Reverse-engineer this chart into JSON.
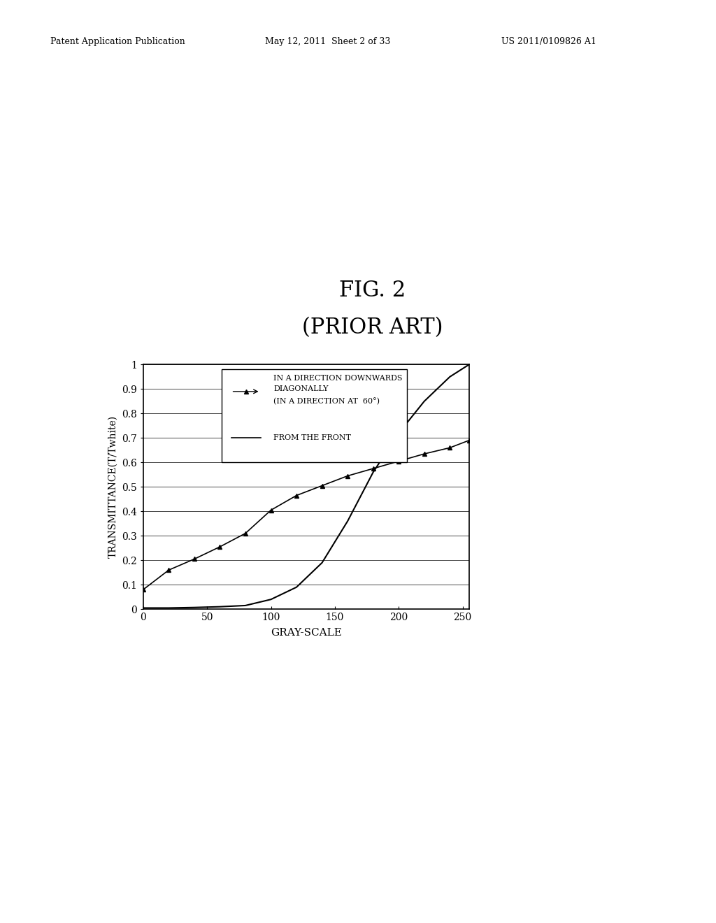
{
  "header_left": "Patent Application Publication",
  "header_mid": "May 12, 2011  Sheet 2 of 33",
  "header_right": "US 2011/0109826 A1",
  "title_line1": "FIG. 2",
  "title_line2": "(PRIOR ART)",
  "xlabel": "GRAY-SCALE",
  "ylabel": "TRANSMITTANCE(T/Twhite)",
  "xlim": [
    0,
    255
  ],
  "ylim": [
    0,
    1.0
  ],
  "xticks": [
    0,
    50,
    100,
    150,
    200,
    250
  ],
  "yticks": [
    0,
    0.1,
    0.2,
    0.3,
    0.4,
    0.5,
    0.6,
    0.7,
    0.8,
    0.9,
    1
  ],
  "ytick_labels": [
    "0",
    "0.1",
    "0.2",
    "0.3",
    "0.4",
    "0.5",
    "0.6",
    "0.7",
    "0.8",
    "0.9",
    "1"
  ],
  "diagonal_x": [
    0,
    20,
    40,
    60,
    80,
    100,
    120,
    140,
    160,
    180,
    200,
    220,
    240,
    255
  ],
  "diagonal_y": [
    0.08,
    0.16,
    0.205,
    0.255,
    0.31,
    0.405,
    0.465,
    0.505,
    0.545,
    0.575,
    0.605,
    0.635,
    0.66,
    0.69
  ],
  "front_x": [
    0,
    20,
    40,
    60,
    80,
    100,
    120,
    140,
    160,
    180,
    200,
    220,
    240,
    255
  ],
  "front_y": [
    0.005,
    0.005,
    0.007,
    0.01,
    0.015,
    0.04,
    0.09,
    0.19,
    0.36,
    0.56,
    0.72,
    0.85,
    0.95,
    1.0
  ],
  "legend_line1": "IN A DIRECTION DOWNWARDS",
  "legend_line2": "DIAGONALLY",
  "legend_line3": "(IN A DIRECTION AT  60°)",
  "legend_line4": "FROM THE FRONT",
  "line_color": "#000000",
  "marker_color": "#000000",
  "bg_color": "#ffffff",
  "plot_bg_color": "#ffffff",
  "title_fontsize": 22,
  "header_fontsize": 9,
  "tick_fontsize": 10,
  "label_fontsize": 11,
  "legend_fontsize": 8
}
